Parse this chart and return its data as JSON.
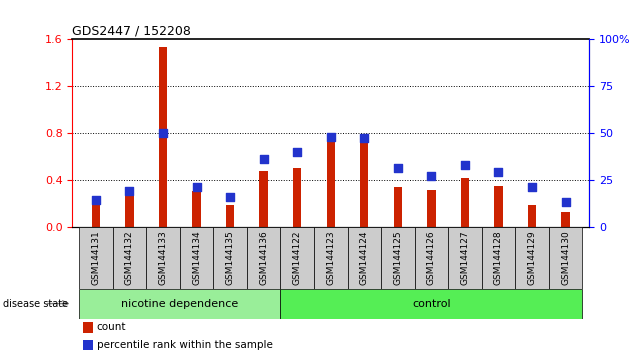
{
  "title": "GDS2447 / 152208",
  "categories": [
    "GSM144131",
    "GSM144132",
    "GSM144133",
    "GSM144134",
    "GSM144135",
    "GSM144136",
    "GSM144122",
    "GSM144123",
    "GSM144124",
    "GSM144125",
    "GSM144126",
    "GSM144127",
    "GSM144128",
    "GSM144129",
    "GSM144130"
  ],
  "count_values": [
    0.18,
    0.32,
    1.53,
    0.3,
    0.18,
    0.47,
    0.5,
    0.75,
    0.72,
    0.34,
    0.31,
    0.41,
    0.35,
    0.18,
    0.12
  ],
  "percentile_values": [
    14,
    19,
    50,
    21,
    16,
    36,
    40,
    48,
    47,
    31,
    27,
    33,
    29,
    21,
    13
  ],
  "ylim_left": [
    0,
    1.6
  ],
  "ylim_right": [
    0,
    100
  ],
  "yticks_left": [
    0,
    0.4,
    0.8,
    1.2,
    1.6
  ],
  "yticks_right": [
    0,
    25,
    50,
    75,
    100
  ],
  "bar_color_count": "#cc2200",
  "bar_color_pct": "#2233cc",
  "nicotine_n": 6,
  "control_n": 9,
  "nicotine_label": "nicotine dependence",
  "control_label": "control",
  "disease_state_label": "disease state",
  "legend_count": "count",
  "legend_pct": "percentile rank within the sample",
  "group_bg_nicotine": "#99ee99",
  "group_bg_control": "#55ee55",
  "tick_bg": "#cccccc",
  "bar_width": 0.25,
  "pct_marker_size": 5
}
